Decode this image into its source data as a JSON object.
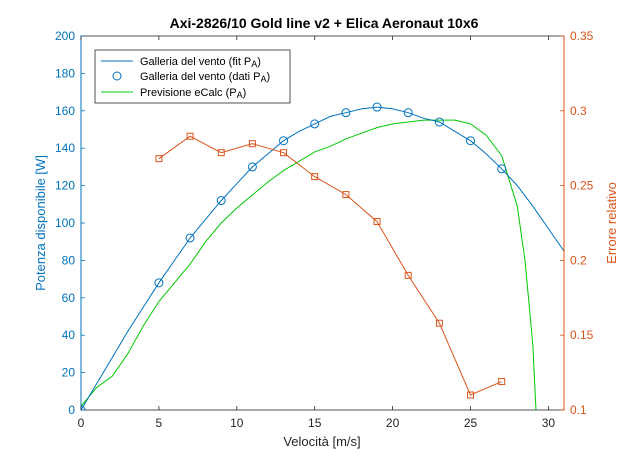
{
  "chart_data": {
    "type": "line",
    "title": "Axi-2826/10 Gold line v2 + Elica Aeronaut 10x6",
    "xlabel": "Velocità [m/s]",
    "ylabel_left": "Potenza disponibile [W]",
    "ylabel_right": "Errore relativo",
    "xlim": [
      0,
      31
    ],
    "ylim_left": [
      0,
      200
    ],
    "ylim_right": [
      0.1,
      0.35
    ],
    "x_ticks": [
      "0",
      "5",
      "10",
      "15",
      "20",
      "25",
      "30"
    ],
    "y_ticks_left": [
      "0",
      "20",
      "40",
      "60",
      "80",
      "100",
      "120",
      "140",
      "160",
      "180",
      "200"
    ],
    "y_ticks_right": [
      "0.1",
      "0.15",
      "0.2",
      "0.25",
      "0.3",
      "0.35"
    ],
    "grid": false,
    "legend_position": "top-left",
    "colors": {
      "left_axis": "#0072BD",
      "right_axis": "#D95319",
      "ecalc": "#00C800"
    },
    "series": [
      {
        "name": "Galleria del vento (fit PA)",
        "axis": "left",
        "style": "line",
        "x": [
          0,
          1,
          2,
          3,
          4,
          5,
          6,
          7,
          8,
          9,
          10,
          11,
          12,
          13,
          14,
          15,
          16,
          17,
          18,
          19,
          20,
          21,
          22,
          23,
          24,
          25,
          26,
          27,
          28,
          29,
          30,
          31
        ],
        "y": [
          0,
          14,
          28,
          42,
          55,
          68,
          80,
          92,
          102,
          112,
          121,
          130,
          137,
          144,
          149,
          153,
          157,
          159,
          161,
          162,
          161,
          159,
          156,
          154,
          149,
          144,
          137,
          129,
          120,
          109,
          97,
          85
        ]
      },
      {
        "name": "Galleria del vento (dati PA)",
        "axis": "left",
        "style": "markers",
        "x": [
          0,
          5,
          7,
          9,
          11,
          13,
          15,
          17,
          19,
          21,
          23,
          25,
          27
        ],
        "y": [
          0,
          68,
          92,
          112,
          130,
          144,
          153,
          159,
          162,
          159,
          154,
          144,
          129
        ]
      },
      {
        "name": "Previsione eCalc (PA)",
        "axis": "left",
        "style": "line",
        "x": [
          0,
          0.5,
          1,
          1.5,
          2,
          3,
          4,
          5,
          6,
          7,
          8,
          9,
          10,
          11,
          12,
          13,
          14,
          15,
          16,
          17,
          18,
          19,
          20,
          21,
          22,
          23,
          24,
          25,
          26,
          27,
          28,
          28.5,
          29,
          29.2
        ],
        "y": [
          2,
          7,
          12,
          15,
          18,
          30,
          45,
          58,
          68,
          78,
          90,
          100,
          108,
          115,
          122,
          128,
          133,
          138,
          141,
          145,
          148,
          151,
          153,
          154,
          155,
          155,
          155,
          153,
          147,
          136,
          109,
          80,
          35,
          0
        ]
      },
      {
        "name": "Errore relativo",
        "axis": "right",
        "style": "line-markers",
        "x": [
          5,
          7,
          9,
          11,
          13,
          15,
          17,
          19,
          21,
          23,
          25,
          27
        ],
        "y": [
          0.268,
          0.283,
          0.272,
          0.278,
          0.272,
          0.256,
          0.244,
          0.226,
          0.19,
          0.158,
          0.11,
          0.119
        ]
      }
    ]
  },
  "legend": {
    "fit": {
      "main": "Galleria del vento (fit P",
      "sub": "A",
      "close": ")"
    },
    "dati": {
      "main": "Galleria del vento (dati P",
      "sub": "A",
      "close": ")"
    },
    "ecalc": {
      "main": "Previsione eCalc (P",
      "sub": "A",
      "close": ")"
    }
  }
}
